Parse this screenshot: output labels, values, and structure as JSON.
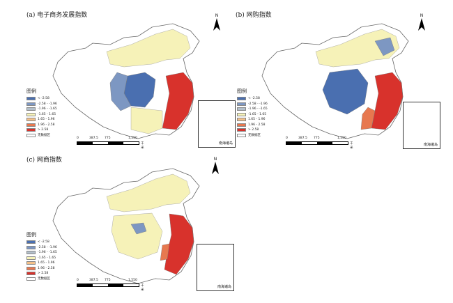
{
  "panels": [
    {
      "title": "(a) 电子商务发展指数",
      "legend_title": "图例"
    },
    {
      "title": "(b) 网购指数",
      "legend_title": "图例"
    },
    {
      "title": "(c) 网商指数",
      "legend_title": "图例"
    }
  ],
  "legend_items": [
    {
      "label": "< -2.58",
      "color": "#4a6fb0"
    },
    {
      "label": "-2.58 - -1.96",
      "color": "#7d97c2"
    },
    {
      "label": "-1.96 - -1.65",
      "color": "#b3bfca"
    },
    {
      "label": "-1.65 - 1.65",
      "color": "#f6f2b8"
    },
    {
      "label": "1.65 - 1.96",
      "color": "#f3c089"
    },
    {
      "label": "1.96 - 2.58",
      "color": "#e7784f"
    },
    {
      "label": "> 2.58",
      "color": "#d8322c"
    },
    {
      "label": "无数据区",
      "color": "#ffffff"
    }
  ],
  "north_label": "N",
  "scale": {
    "ticks": [
      "0",
      "387.5",
      "775",
      "1,550"
    ],
    "unit": "千米"
  },
  "inset_label": "南海诸岛",
  "colors": {
    "outline": "#666666",
    "nodata": "#ffffff"
  }
}
